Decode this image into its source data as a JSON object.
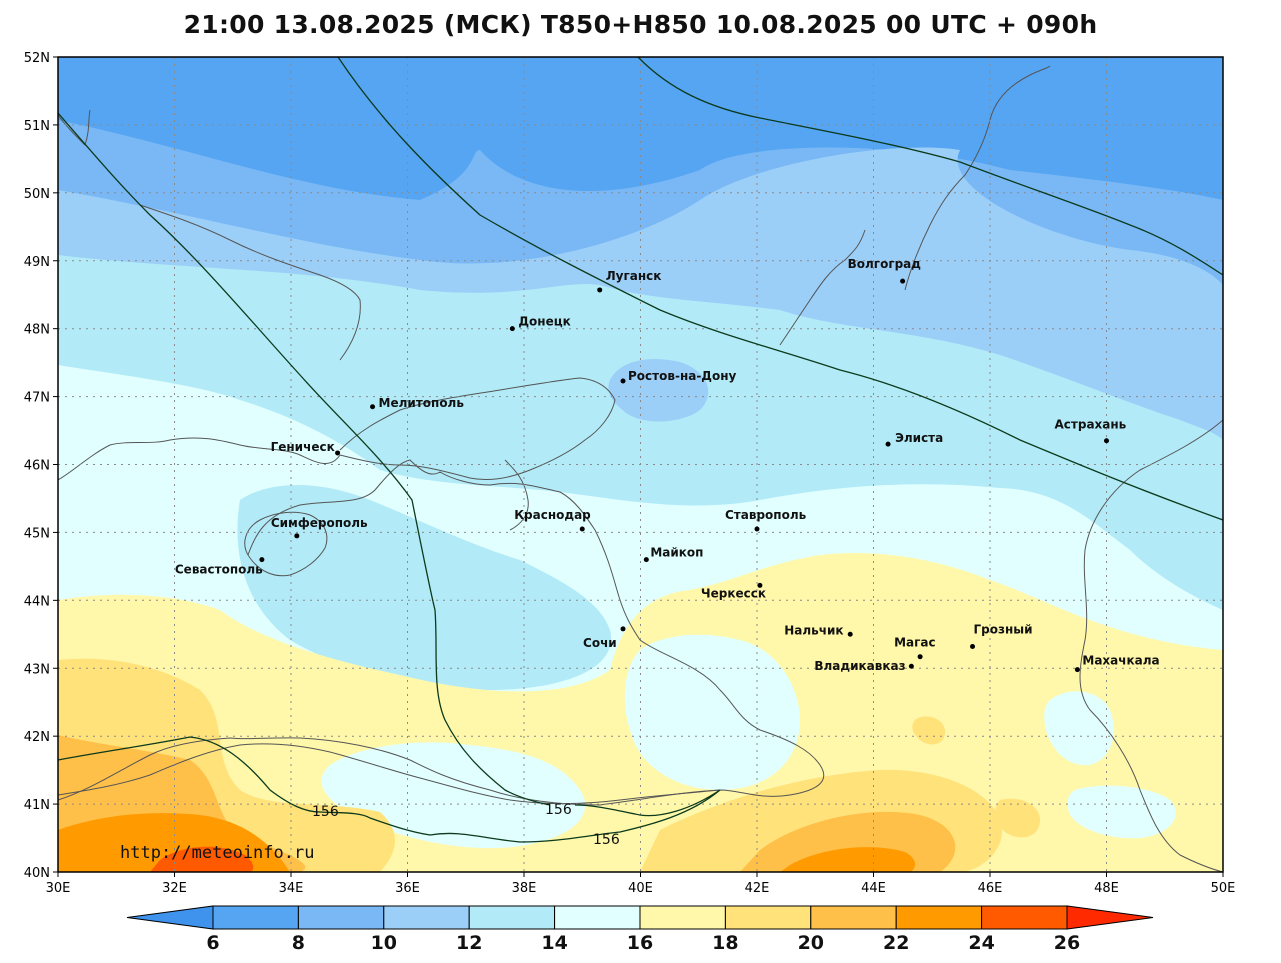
{
  "title": "21:00 13.08.2025 (МСК) T850+H850 10.08.2025 00 UTC + 090h",
  "watermark": "http://meteoinfo.ru",
  "x_ticks": [
    "30E",
    "32E",
    "34E",
    "36E",
    "38E",
    "40E",
    "42E",
    "44E",
    "46E",
    "48E",
    "50E"
  ],
  "y_ticks": [
    "40N",
    "41N",
    "42N",
    "43N",
    "44N",
    "45N",
    "46N",
    "47N",
    "48N",
    "49N",
    "50N",
    "51N",
    "52N"
  ],
  "map_extent": {
    "lon": [
      30,
      50
    ],
    "lat": [
      40,
      52
    ]
  },
  "colorbar": {
    "labels": [
      "6",
      "8",
      "10",
      "12",
      "14",
      "16",
      "18",
      "20",
      "22",
      "24",
      "26"
    ],
    "colors": [
      "#3f93ec",
      "#56a5f2",
      "#7ab8f5",
      "#9ccff8",
      "#b2ebf7",
      "#e1ffff",
      "#fff7aa",
      "#ffe27a",
      "#ffc04a",
      "#ff9a00",
      "#ff5a00",
      "#ff2a00"
    ]
  },
  "contour_labels": [
    "156",
    "156",
    "156"
  ],
  "cities": [
    {
      "name": "Луганск",
      "lon": 39.3,
      "lat": 48.57
    },
    {
      "name": "Донецк",
      "lon": 37.8,
      "lat": 48.0
    },
    {
      "name": "Волгоград",
      "lon": 44.5,
      "lat": 48.7
    },
    {
      "name": "Ростов-на-Дону",
      "lon": 39.7,
      "lat": 47.23
    },
    {
      "name": "Мелитополь",
      "lon": 35.4,
      "lat": 46.85
    },
    {
      "name": "Элиста",
      "lon": 44.25,
      "lat": 46.3
    },
    {
      "name": "Астрахань",
      "lon": 48.0,
      "lat": 46.35
    },
    {
      "name": "Геническ",
      "lon": 34.8,
      "lat": 46.17
    },
    {
      "name": "Краснодар",
      "lon": 39.0,
      "lat": 45.05
    },
    {
      "name": "Ставрополь",
      "lon": 42.0,
      "lat": 45.05
    },
    {
      "name": "Симферополь",
      "lon": 34.1,
      "lat": 44.95
    },
    {
      "name": "Майкоп",
      "lon": 40.1,
      "lat": 44.6
    },
    {
      "name": "Севастополь",
      "lon": 33.5,
      "lat": 44.6
    },
    {
      "name": "Черкесск",
      "lon": 42.05,
      "lat": 44.22
    },
    {
      "name": "Нальчик",
      "lon": 43.6,
      "lat": 43.5
    },
    {
      "name": "Грозный",
      "lon": 45.7,
      "lat": 43.32
    },
    {
      "name": "Сочи",
      "lon": 39.7,
      "lat": 43.58
    },
    {
      "name": "Магас",
      "lon": 44.8,
      "lat": 43.17
    },
    {
      "name": "Владикавказ",
      "lon": 44.65,
      "lat": 43.03
    },
    {
      "name": "Махачкала",
      "lon": 47.5,
      "lat": 42.98
    }
  ]
}
